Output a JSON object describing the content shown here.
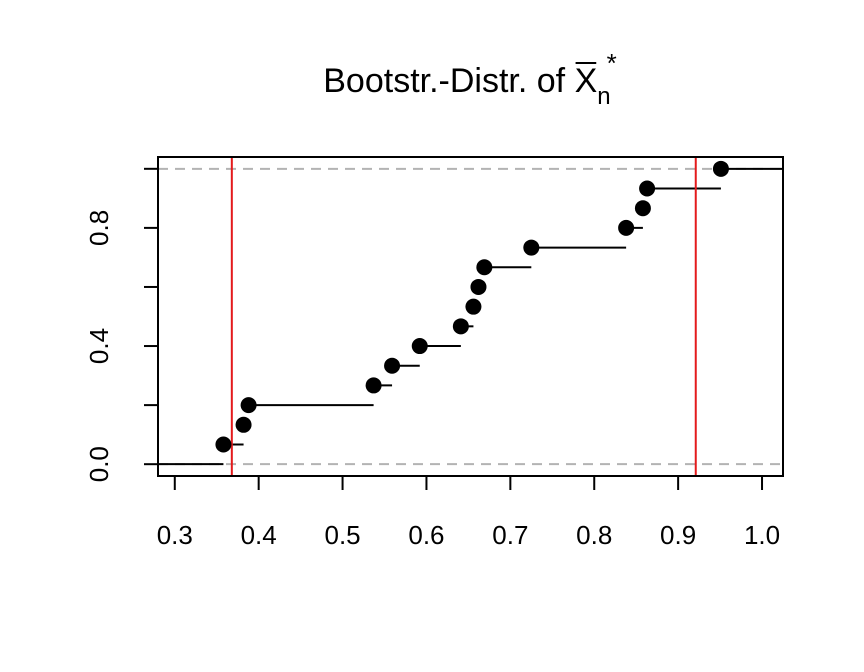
{
  "chart_data": {
    "type": "step",
    "title": {
      "prefix": "Bootstr.-Distr. of ",
      "symbol": "X",
      "subscript": "n",
      "superscript": "*"
    },
    "xlabel": "",
    "ylabel": "",
    "xlim": [
      0.28,
      1.025
    ],
    "ylim": [
      -0.04,
      1.04
    ],
    "x_ticks": [
      0.3,
      0.4,
      0.5,
      0.6,
      0.7,
      0.8,
      0.9,
      1.0
    ],
    "x_tick_labels": [
      "0.3",
      "0.4",
      "0.5",
      "0.6",
      "0.7",
      "0.8",
      "0.9",
      "1.0"
    ],
    "y_ticks": [
      0.0,
      0.2,
      0.4,
      0.6,
      0.8,
      1.0
    ],
    "y_labeled_ticks": [
      0.0,
      0.4,
      0.8
    ],
    "y_tick_labels": [
      "0.0",
      "0.4",
      "0.8"
    ],
    "points": [
      {
        "x": 0.358,
        "y": 0.0667
      },
      {
        "x": 0.382,
        "y": 0.1333
      },
      {
        "x": 0.388,
        "y": 0.2
      },
      {
        "x": 0.537,
        "y": 0.2667
      },
      {
        "x": 0.559,
        "y": 0.3333
      },
      {
        "x": 0.592,
        "y": 0.4
      },
      {
        "x": 0.641,
        "y": 0.4667
      },
      {
        "x": 0.656,
        "y": 0.5333
      },
      {
        "x": 0.662,
        "y": 0.6
      },
      {
        "x": 0.669,
        "y": 0.6667
      },
      {
        "x": 0.725,
        "y": 0.7333
      },
      {
        "x": 0.838,
        "y": 0.8
      },
      {
        "x": 0.858,
        "y": 0.8667
      },
      {
        "x": 0.863,
        "y": 0.9333
      },
      {
        "x": 0.951,
        "y": 1.0
      }
    ],
    "reference_lines": {
      "horizontal_dashed": [
        0.0,
        1.0
      ],
      "vertical": [
        0.368,
        0.921
      ]
    },
    "colors": {
      "points": "#000000",
      "steps": "#000000",
      "vertical_lines": "#e41a1c",
      "dashed_lines": "#b3b3b3",
      "frame": "#000000"
    }
  }
}
